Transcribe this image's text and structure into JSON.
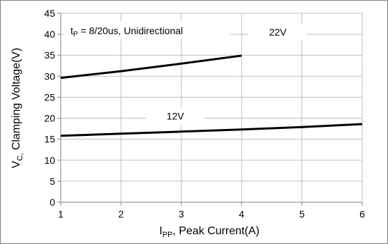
{
  "chart_data": {
    "type": "line",
    "ylabel": "V",
    "ylabel_sub": "C,",
    "ylabel_rest": " Clamping Voltage(V)",
    "xlabel": "I",
    "xlabel_sub": "PP",
    "xlabel_rest": ", Peak Current(A)",
    "annotation": "t",
    "annotation_sub": "P",
    "annotation_rest": " = 8/20us, Unidirectional",
    "xlim": [
      1,
      6
    ],
    "ylim": [
      0,
      45
    ],
    "x_ticks": [
      "1",
      "2",
      "3",
      "4",
      "5",
      "6"
    ],
    "y_ticks": [
      "0",
      "5",
      "10",
      "15",
      "20",
      "25",
      "30",
      "35",
      "40",
      "45"
    ],
    "grid": true,
    "series": [
      {
        "name": "22V",
        "x": [
          1,
          2,
          3,
          4
        ],
        "y": [
          29.6,
          31.2,
          33.0,
          34.9
        ]
      },
      {
        "name": "12V",
        "x": [
          1,
          2,
          3,
          4,
          5,
          6
        ],
        "y": [
          15.8,
          16.3,
          16.8,
          17.3,
          17.9,
          18.6
        ]
      }
    ],
    "series_label_positions": [
      "at-x-4.6-above-grid-40",
      "at-x-2.9-above-grid-20"
    ],
    "line_color": "#000000",
    "grid_color": "#bfbfbf"
  }
}
